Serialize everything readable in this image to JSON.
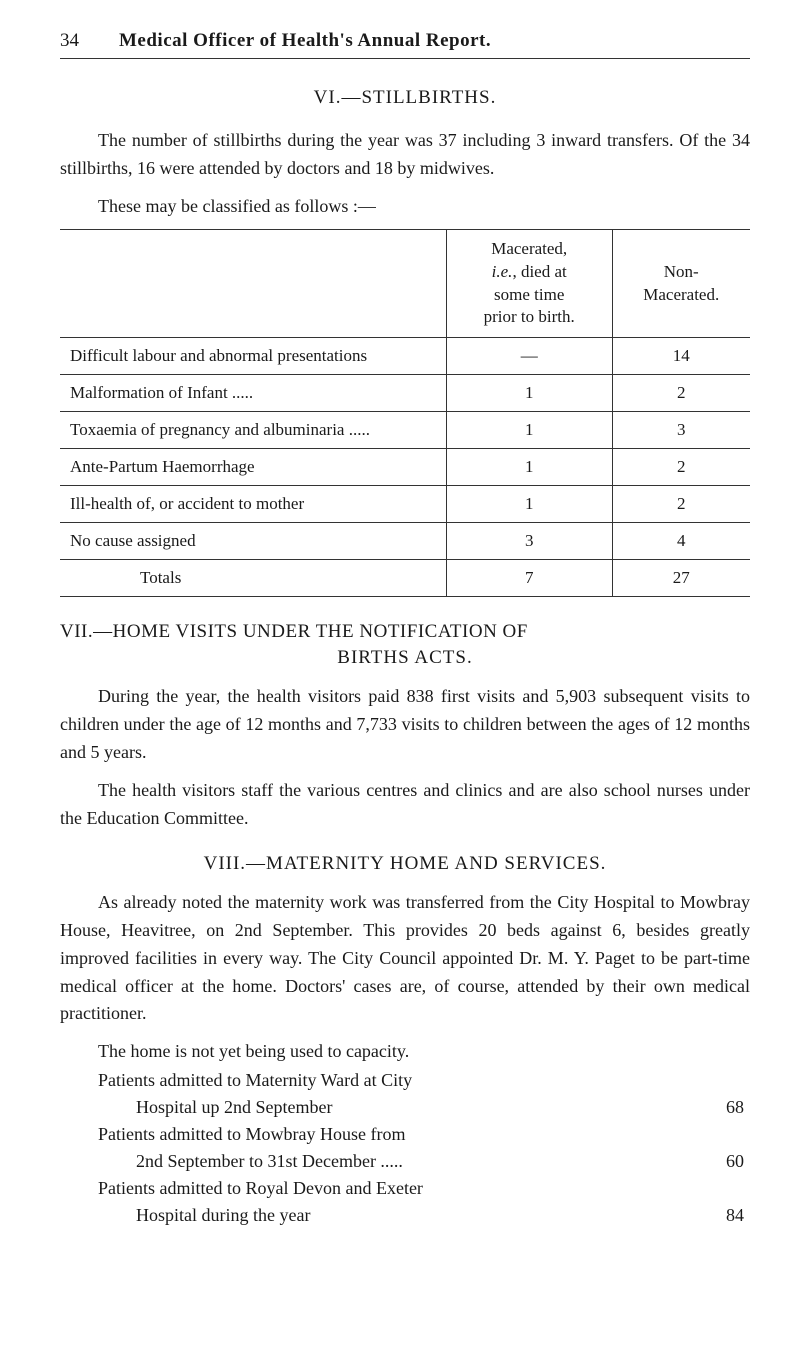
{
  "header": {
    "page_number": "34",
    "title": "Medical Officer of Health's Annual Report."
  },
  "section_vi": {
    "heading": "VI.—STILLBIRTHS.",
    "paragraph": "The number of stillbirths during the year was 37 including 3 inward transfers. Of the 34 stillbirths, 16 were attended by doctors and 18 by midwives.",
    "classify_line": "These may be classified as follows :—",
    "table": {
      "col1_header_line1": "Macerated,",
      "col1_header_line2_pre": "i.e.",
      "col1_header_line2_post": ", died at",
      "col1_header_line3": "some time",
      "col1_header_line4": "prior to birth.",
      "col2_header_line1": "Non-",
      "col2_header_line2": "Macerated.",
      "rows": [
        {
          "label": "Difficult labour and abnormal presentations",
          "col1": "—",
          "col2": "14"
        },
        {
          "label": "Malformation of Infant .....",
          "col1": "1",
          "col2": "2"
        },
        {
          "label": "Toxaemia of pregnancy and albuminaria .....",
          "col1": "1",
          "col2": "3"
        },
        {
          "label": "Ante-Partum Haemorrhage",
          "col1": "1",
          "col2": "2"
        },
        {
          "label": "Ill-health of, or accident to mother",
          "col1": "1",
          "col2": "2"
        },
        {
          "label": "No cause assigned",
          "col1": "3",
          "col2": "4"
        }
      ],
      "totals_label": "Totals",
      "totals_col1": "7",
      "totals_col2": "27"
    }
  },
  "section_vii": {
    "heading_line1": "VII.—HOME VISITS UNDER THE NOTIFICATION OF",
    "heading_line2": "BIRTHS ACTS.",
    "para1": "During the year, the health visitors paid 838 first visits and 5,903 subsequent visits to children under the age of 12 months and 7,733 visits to children between the ages of 12 months and 5 years.",
    "para2": "The health visitors staff the various centres and clinics and are also school nurses under the Education Committee."
  },
  "section_viii": {
    "heading": "VIII.—MATERNITY HOME AND SERVICES.",
    "para1": "As already noted the maternity work was transferred from the City Hospital to Mowbray House, Heavitree, on 2nd September. This provides 20 beds against 6, besides greatly improved facilities in every way. The City Council appointed Dr. M. Y. Paget to be part-time medical officer at the home. Doctors' cases are, of course, attended by their own medical practitioner.",
    "list_intro": "The home is not yet being used to capacity.",
    "items": [
      {
        "line1": "Patients admitted to Maternity Ward at City",
        "line2": "Hospital up 2nd September",
        "value": "68"
      },
      {
        "line1": "Patients admitted to Mowbray House from",
        "line2": "2nd September to 31st December .....",
        "value": "60"
      },
      {
        "line1": "Patients admitted to Royal Devon and Exeter",
        "line2": "Hospital during the year",
        "value": "84"
      }
    ]
  }
}
